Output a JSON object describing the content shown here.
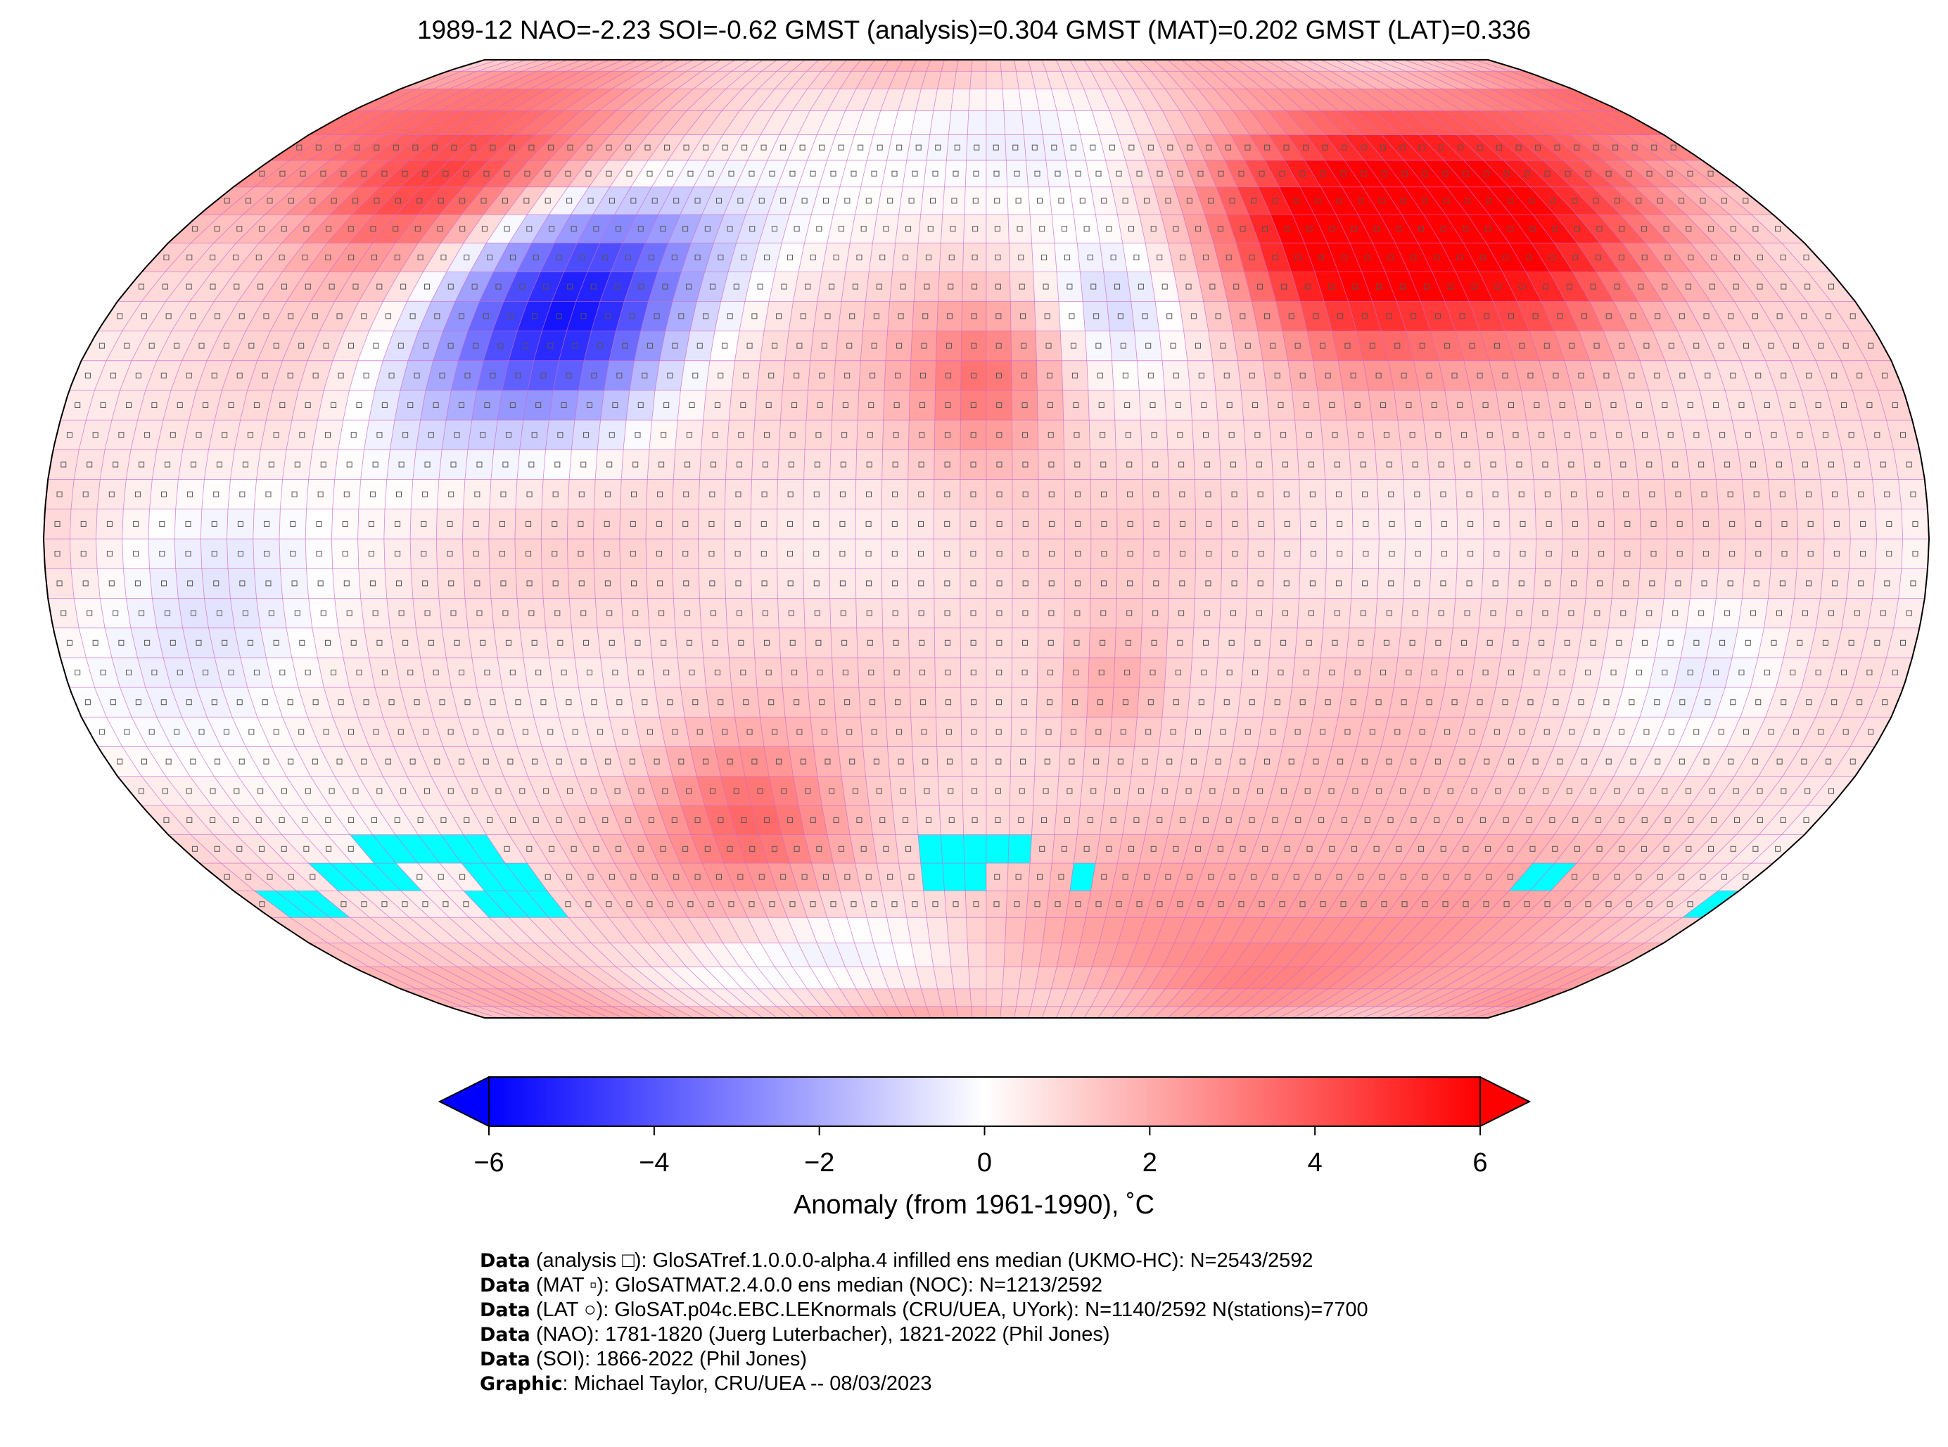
{
  "title": "1989-12 NAO=-2.23 SOI=-0.62 GMST (analysis)=0.304 GMST (MAT)=0.202 GMST (LAT)=0.336",
  "map": {
    "projection": "Robinson",
    "grid_resolution_deg": 5,
    "missing_color": "#00ffff",
    "gridline_color": "#cc66cc"
  },
  "colorbar": {
    "colormap": "bwr",
    "min": -6,
    "max": 6,
    "extend": "both",
    "ticks": [
      "−6",
      "−4",
      "−2",
      "0",
      "2",
      "4",
      "6"
    ],
    "tick_values": [
      -6,
      -4,
      -2,
      0,
      2,
      4,
      6
    ],
    "label": "Anomaly (from 1961-1990), ˚C",
    "colors": {
      "low": "#0000ff",
      "mid": "#ffffff",
      "high": "#ff0000"
    }
  },
  "footer": [
    {
      "bold": "Data",
      "text": " (analysis □): GloSATref.1.0.0.0-alpha.4 infilled ens median (UKMO-HC): N=2543/2592"
    },
    {
      "bold": "Data",
      "text": " (MAT ▫): GloSATMAT.2.4.0.0 ens median (NOC): N=1213/2592"
    },
    {
      "bold": "Data",
      "text": " (LAT ○): GloSAT.p04c.EBC.LEKnormals (CRU/UEA, UYork): N=1140/2592 N(stations)=7700"
    },
    {
      "bold": "Data",
      "text": " (NAO): 1781-1820 (Juerg Luterbacher), 1821-2022 (Phil Jones)"
    },
    {
      "bold": "Data",
      "text": " (SOI): 1866-2022 (Phil Jones)"
    },
    {
      "bold": "Graphic",
      "text": ": Michael Taylor, CRU/UEA -- 08/03/2023"
    }
  ]
}
